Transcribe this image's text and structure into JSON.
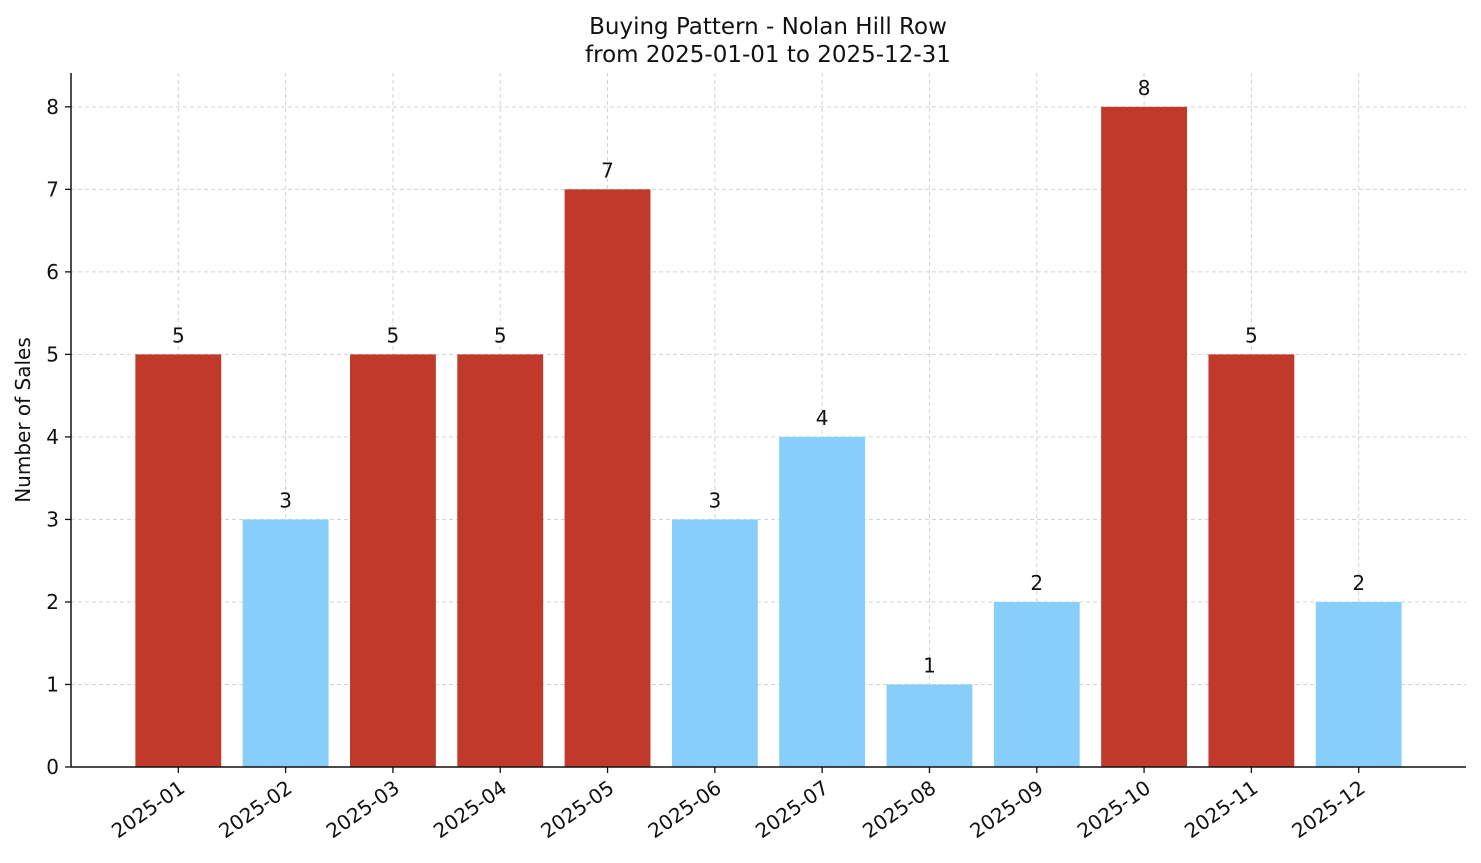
{
  "chart_data": {
    "type": "bar",
    "title": "Buying Pattern - Nolan Hill Row",
    "subtitle": "from 2025-01-01 to 2025-12-31",
    "y_label": "Number of Sales",
    "categories": [
      "2025-01",
      "2025-02",
      "2025-03",
      "2025-04",
      "2025-05",
      "2025-06",
      "2025-07",
      "2025-08",
      "2025-09",
      "2025-10",
      "2025-11",
      "2025-12"
    ],
    "values": [
      5,
      3,
      5,
      5,
      7,
      3,
      4,
      1,
      2,
      8,
      5,
      2
    ],
    "colors": [
      "#c0392b",
      "#87cefa",
      "#c0392b",
      "#c0392b",
      "#c0392b",
      "#87cefa",
      "#87cefa",
      "#87cefa",
      "#87cefa",
      "#c0392b",
      "#c0392b",
      "#87cefa"
    ],
    "ylim": [
      0,
      8.41
    ],
    "yticks": [
      0,
      1,
      2,
      3,
      4,
      5,
      6,
      7,
      8
    ],
    "grid": true
  }
}
